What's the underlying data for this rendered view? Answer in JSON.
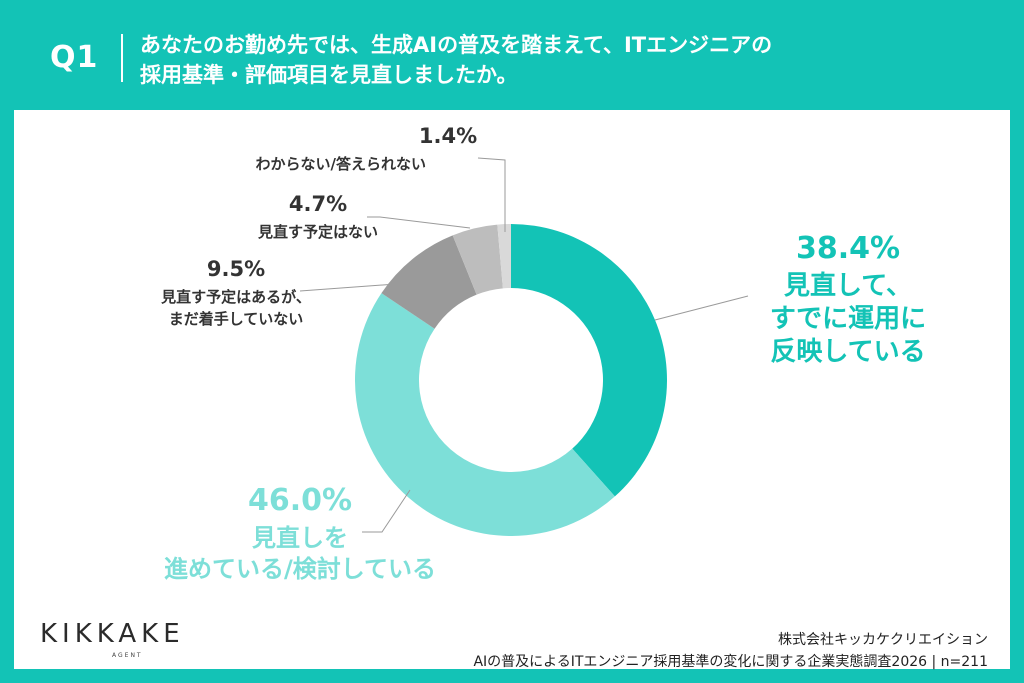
{
  "question": {
    "number": "Q1",
    "line1": "あなたのお勤め先では、生成AIの普及を踏まえて、ITエンジニアの",
    "line2": "採用基準・評価項目を見直しましたか。"
  },
  "chart_data": {
    "type": "pie",
    "donut": true,
    "categories": [
      "見直して、すでに運用に反映している",
      "見直しを進めている/検討している",
      "見直す予定はあるが、まだ着手していない",
      "見直す予定はない",
      "わからない/答えられない"
    ],
    "values": [
      38.4,
      46.0,
      9.5,
      4.7,
      1.4
    ],
    "colors": [
      "#13c3b6",
      "#7ddfd8",
      "#9a9a9a",
      "#bdbdbd",
      "#d9d9d9"
    ],
    "labels": [
      {
        "pct": "38.4%",
        "lines": [
          "見直して、",
          "すでに運用に",
          "反映している"
        ]
      },
      {
        "pct": "46.0%",
        "lines": [
          "見直しを",
          "進めている/検討している"
        ]
      },
      {
        "pct": "9.5%",
        "lines": [
          "見直す予定はあるが、",
          "まだ着手していない"
        ]
      },
      {
        "pct": "4.7%",
        "lines": [
          "見直す予定はない"
        ]
      },
      {
        "pct": "1.4%",
        "lines": [
          "わからない/答えられない"
        ]
      }
    ]
  },
  "footer": {
    "company": "株式会社キッカケクリエイション",
    "survey": "AIの普及によるITエンジニア採用基準の変化に関する企業実態調査2026 | n=211"
  },
  "logo": {
    "name": "KIKKAKE",
    "sub": "AGENT"
  }
}
